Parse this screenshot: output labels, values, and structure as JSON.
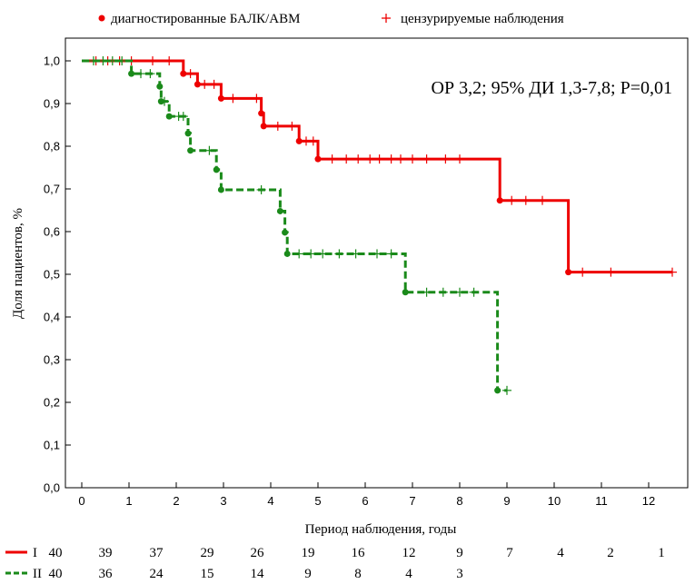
{
  "chart_data": {
    "type": "line",
    "subtype": "kaplan-meier",
    "xlabel": "Период наблюдения, годы",
    "ylabel": "Доля пациентов, %",
    "xlim": [
      -0.3,
      12.9
    ],
    "ylim": [
      0.0,
      1.06
    ],
    "x_ticks": [
      0,
      1,
      2,
      3,
      4,
      5,
      6,
      7,
      8,
      9,
      10,
      11,
      12
    ],
    "y_ticks": [
      0.0,
      0.1,
      0.2,
      0.3,
      0.4,
      0.5,
      0.6,
      0.7,
      0.8,
      0.9,
      1.0
    ],
    "y_tick_labels": [
      "0,0",
      "0,1",
      "0,2",
      "0,3",
      "0,4",
      "0,5",
      "0,6",
      "0,7",
      "0,8",
      "0,9",
      "1,0"
    ],
    "grid": false,
    "legend": {
      "position": "top",
      "entries": [
        {
          "label": "диагностированные БАЛК/АВМ",
          "marker": "dot",
          "color": "#ee0000"
        },
        {
          "label": "цензурируемые наблюдения",
          "marker": "plus",
          "color": "#ee0000"
        }
      ]
    },
    "annotation": "ОР 3,2; 95% ДИ 1,3-7,8; P=0,01",
    "series": [
      {
        "id": "I",
        "color": "#ee0000",
        "dash": "solid",
        "steps": [
          [
            0,
            1.0
          ],
          [
            2.15,
            0.97
          ],
          [
            2.45,
            0.945
          ],
          [
            2.95,
            0.912
          ],
          [
            3.8,
            0.877
          ],
          [
            3.85,
            0.847
          ],
          [
            4.6,
            0.812
          ],
          [
            5.0,
            0.77
          ],
          [
            8.85,
            0.673
          ],
          [
            10.3,
            0.505
          ]
        ],
        "end_x": 12.5,
        "events": [
          [
            2.15,
            0.97
          ],
          [
            2.45,
            0.945
          ],
          [
            2.95,
            0.912
          ],
          [
            3.8,
            0.877
          ],
          [
            3.85,
            0.847
          ],
          [
            4.6,
            0.812
          ],
          [
            5.0,
            0.77
          ],
          [
            8.85,
            0.673
          ],
          [
            10.3,
            0.505
          ]
        ],
        "censored": [
          [
            0.3,
            1.0
          ],
          [
            0.55,
            1.0
          ],
          [
            0.8,
            1.0
          ],
          [
            1.05,
            1.0
          ],
          [
            1.5,
            1.0
          ],
          [
            1.85,
            1.0
          ],
          [
            2.3,
            0.97
          ],
          [
            2.6,
            0.945
          ],
          [
            2.8,
            0.945
          ],
          [
            3.2,
            0.912
          ],
          [
            3.7,
            0.912
          ],
          [
            4.15,
            0.847
          ],
          [
            4.45,
            0.847
          ],
          [
            4.75,
            0.812
          ],
          [
            4.9,
            0.812
          ],
          [
            5.3,
            0.77
          ],
          [
            5.6,
            0.77
          ],
          [
            5.85,
            0.77
          ],
          [
            6.1,
            0.77
          ],
          [
            6.3,
            0.77
          ],
          [
            6.55,
            0.77
          ],
          [
            6.75,
            0.77
          ],
          [
            7.0,
            0.77
          ],
          [
            7.3,
            0.77
          ],
          [
            7.7,
            0.77
          ],
          [
            8.0,
            0.77
          ],
          [
            9.1,
            0.673
          ],
          [
            9.4,
            0.673
          ],
          [
            9.75,
            0.673
          ],
          [
            10.6,
            0.505
          ],
          [
            11.2,
            0.505
          ],
          [
            12.5,
            0.505
          ]
        ],
        "at_risk": [
          40,
          39,
          37,
          29,
          26,
          19,
          16,
          12,
          9,
          7,
          4,
          2,
          1
        ]
      },
      {
        "id": "II",
        "color": "#1a8a1a",
        "dash": "dashed",
        "steps": [
          [
            0,
            1.0
          ],
          [
            1.05,
            0.97
          ],
          [
            1.65,
            0.94
          ],
          [
            1.68,
            0.905
          ],
          [
            1.85,
            0.87
          ],
          [
            2.25,
            0.83
          ],
          [
            2.3,
            0.79
          ],
          [
            2.85,
            0.745
          ],
          [
            2.95,
            0.698
          ],
          [
            4.2,
            0.648
          ],
          [
            4.3,
            0.598
          ],
          [
            4.35,
            0.548
          ],
          [
            6.85,
            0.458
          ],
          [
            8.8,
            0.228
          ]
        ],
        "end_x": 9.0,
        "events": [
          [
            1.05,
            0.97
          ],
          [
            1.65,
            0.94
          ],
          [
            1.68,
            0.905
          ],
          [
            1.85,
            0.87
          ],
          [
            2.25,
            0.83
          ],
          [
            2.3,
            0.79
          ],
          [
            2.85,
            0.745
          ],
          [
            2.95,
            0.698
          ],
          [
            4.2,
            0.648
          ],
          [
            4.3,
            0.598
          ],
          [
            4.35,
            0.548
          ],
          [
            6.85,
            0.458
          ],
          [
            8.8,
            0.228
          ]
        ],
        "censored": [
          [
            0.25,
            1.0
          ],
          [
            0.45,
            1.0
          ],
          [
            0.65,
            1.0
          ],
          [
            0.85,
            1.0
          ],
          [
            1.25,
            0.97
          ],
          [
            1.45,
            0.97
          ],
          [
            1.75,
            0.905
          ],
          [
            2.05,
            0.87
          ],
          [
            2.15,
            0.87
          ],
          [
            2.7,
            0.79
          ],
          [
            3.8,
            0.698
          ],
          [
            4.6,
            0.548
          ],
          [
            4.85,
            0.548
          ],
          [
            5.1,
            0.548
          ],
          [
            5.45,
            0.548
          ],
          [
            5.8,
            0.548
          ],
          [
            6.25,
            0.548
          ],
          [
            6.55,
            0.548
          ],
          [
            7.3,
            0.458
          ],
          [
            7.65,
            0.458
          ],
          [
            8.0,
            0.458
          ],
          [
            8.3,
            0.458
          ],
          [
            9.0,
            0.228
          ]
        ],
        "at_risk": [
          40,
          36,
          24,
          15,
          14,
          9,
          8,
          4,
          3
        ]
      }
    ]
  }
}
